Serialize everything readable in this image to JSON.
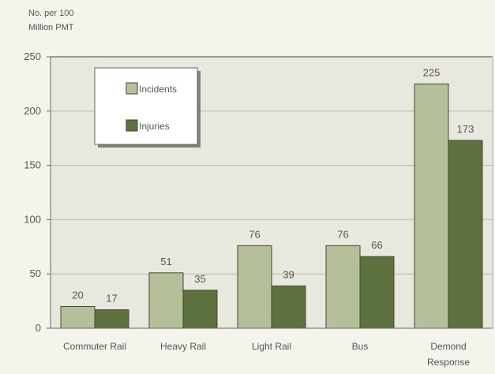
{
  "chart_data": {
    "type": "bar",
    "title": "",
    "ylabel": [
      "No. per 100",
      "Million PMT"
    ],
    "xlabel": "",
    "ylim": [
      0,
      250
    ],
    "yticks": [
      0,
      50,
      100,
      150,
      200,
      250
    ],
    "categories": [
      [
        "Commuter Rail"
      ],
      [
        "Heavy Rail"
      ],
      [
        "Light Rail"
      ],
      [
        "Bus"
      ],
      [
        "Demond",
        "Response"
      ]
    ],
    "series": [
      {
        "name": "Incidents",
        "values": [
          20,
          51,
          76,
          76,
          225
        ],
        "color": "#b5c09a"
      },
      {
        "name": "Injuries",
        "values": [
          17,
          35,
          39,
          66,
          173
        ],
        "color": "#5e7240"
      }
    ],
    "grid": true,
    "legend": "top-left"
  }
}
